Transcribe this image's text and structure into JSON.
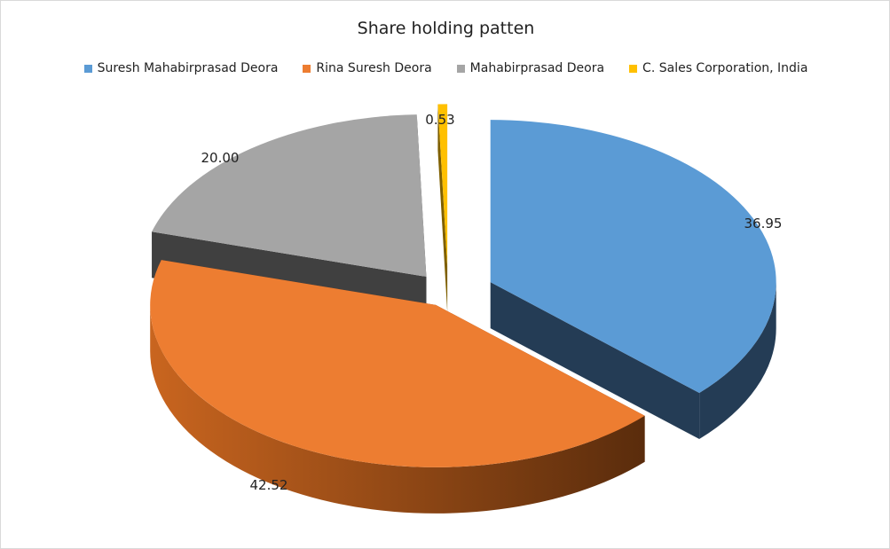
{
  "chart_data": {
    "type": "pie",
    "style": "3d-exploded",
    "title": "Share holding patten",
    "legend_position": "top",
    "slices": [
      {
        "name": "Suresh Mahabirprasad Deora",
        "value": 36.95,
        "label": "36.95",
        "color": "#5b9bd5",
        "side_color": "#243c55"
      },
      {
        "name": "Rina Suresh Deora",
        "value": 42.52,
        "label": "42.52",
        "color": "#ed7d31",
        "side_color": "#8a4316"
      },
      {
        "name": "Mahabirprasad Deora",
        "value": 20.0,
        "label": "20.00",
        "color": "#a5a5a5",
        "side_color": "#404040"
      },
      {
        "name": "C. Sales Corporation, India",
        "value": 0.53,
        "label": "0.53",
        "color": "#ffc000",
        "side_color": "#7f6000"
      }
    ]
  }
}
